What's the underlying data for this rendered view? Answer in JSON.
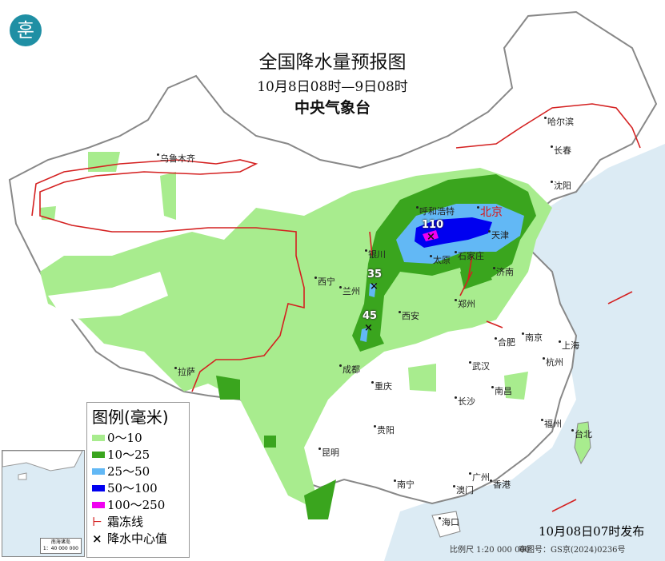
{
  "header": {
    "title": "全国降水量预报图",
    "period": "10月8日08时—9日08时",
    "agency": "中央气象台"
  },
  "logo": {
    "icon": "cma-logo",
    "glyph": "훈"
  },
  "legend": {
    "title": "图例(毫米)",
    "items": [
      {
        "label": "0～10",
        "color": "#a8ec8e"
      },
      {
        "label": "10～25",
        "color": "#3aa51e"
      },
      {
        "label": "25～50",
        "color": "#62b8f5"
      },
      {
        "label": "50～100",
        "color": "#0000f0"
      },
      {
        "label": "100～250",
        "color": "#f000f0"
      }
    ],
    "frost_line": "霜冻线",
    "center_value": "降水中心值"
  },
  "colors": {
    "sea": "#dcebf4",
    "frost_line": "#d42020",
    "capital": "#d11111"
  },
  "cities": [
    {
      "name": "乌鲁木齐"
    },
    {
      "name": "哈尔滨"
    },
    {
      "name": "长春"
    },
    {
      "name": "沈阳"
    },
    {
      "name": "呼和浩特"
    },
    {
      "name": "北京"
    },
    {
      "name": "天津"
    },
    {
      "name": "银川"
    },
    {
      "name": "太原"
    },
    {
      "name": "石家庄"
    },
    {
      "name": "西宁"
    },
    {
      "name": "兰州"
    },
    {
      "name": "济南"
    },
    {
      "name": "郑州"
    },
    {
      "name": "西安"
    },
    {
      "name": "合肥"
    },
    {
      "name": "南京"
    },
    {
      "name": "上海"
    },
    {
      "name": "拉萨"
    },
    {
      "name": "成都"
    },
    {
      "name": "武汉"
    },
    {
      "name": "杭州"
    },
    {
      "name": "重庆"
    },
    {
      "name": "南昌"
    },
    {
      "name": "长沙"
    },
    {
      "name": "福州"
    },
    {
      "name": "台北"
    },
    {
      "name": "贵阳"
    },
    {
      "name": "昆明"
    },
    {
      "name": "广州"
    },
    {
      "name": "南宁"
    },
    {
      "name": "澳门"
    },
    {
      "name": "香港"
    },
    {
      "name": "海口"
    }
  ],
  "precip_centers": [
    {
      "value": "110"
    },
    {
      "value": "35"
    },
    {
      "value": "45"
    }
  ],
  "inset": {
    "title": "南海诸岛",
    "scale": "1：40 000 000"
  },
  "footer": {
    "issued": "10月08日07时发布",
    "scale": "比例尺 1:20 000 000",
    "review_no": "审图号：GS京(2024)0236号"
  }
}
